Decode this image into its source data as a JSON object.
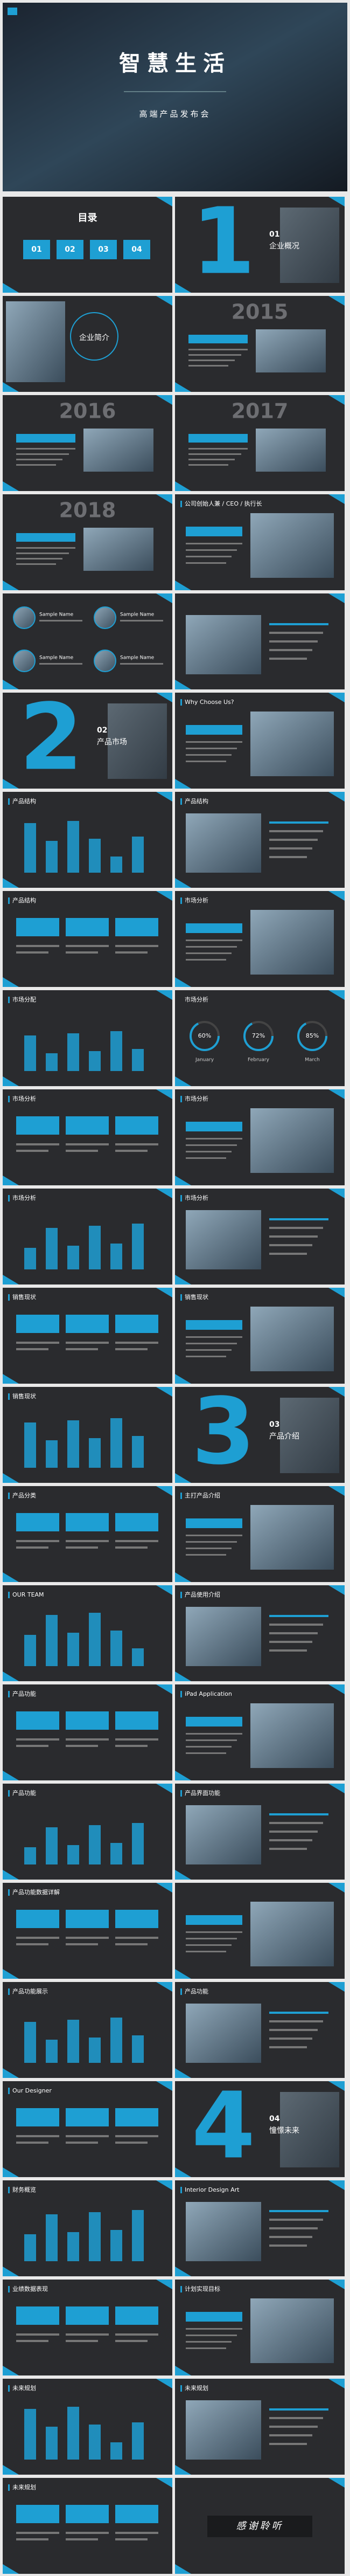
{
  "header": {
    "title": "智慧生活",
    "subtitle": "高端产品发布会"
  },
  "slides": [
    {
      "kind": "toc",
      "title": "目录",
      "items": [
        "01",
        "02",
        "03",
        "04"
      ]
    },
    {
      "kind": "section",
      "number": "1",
      "label": "01",
      "title": "企业概况"
    },
    {
      "kind": "circle",
      "title": "企业简介"
    },
    {
      "kind": "year",
      "year": "2015"
    },
    {
      "kind": "year",
      "year": "2016"
    },
    {
      "kind": "year",
      "year": "2017"
    },
    {
      "kind": "year",
      "year": "2018"
    },
    {
      "kind": "plain",
      "title": "公司创始人兼 / CEO / 执行长"
    },
    {
      "kind": "team",
      "items": [
        "Sample Name",
        "Sample Name",
        "Sample Name",
        "Sample Name"
      ]
    },
    {
      "kind": "plain"
    },
    {
      "kind": "section",
      "number": "2",
      "label": "02",
      "title": "产品市场"
    },
    {
      "kind": "plain",
      "title": "Why Choose Us?"
    },
    {
      "kind": "plain",
      "title": "产品结构"
    },
    {
      "kind": "plain",
      "title": "产品结构"
    },
    {
      "kind": "plain",
      "title": "产品结构"
    },
    {
      "kind": "plain",
      "title": "市场分析"
    },
    {
      "kind": "plain",
      "title": "市场分配"
    },
    {
      "kind": "stats",
      "title": "市场分析",
      "items": [
        "60%",
        "72%",
        "85%"
      ],
      "labels": [
        "January",
        "February",
        "March"
      ]
    },
    {
      "kind": "plain",
      "title": "市场分析"
    },
    {
      "kind": "plain",
      "title": "市场分析"
    },
    {
      "kind": "plain",
      "title": "市场分析"
    },
    {
      "kind": "plain",
      "title": "市场分析"
    },
    {
      "kind": "plain",
      "title": "销售现状"
    },
    {
      "kind": "plain",
      "title": "销售现状"
    },
    {
      "kind": "plain",
      "title": "销售现状"
    },
    {
      "kind": "section",
      "number": "3",
      "label": "03",
      "title": "产品介绍"
    },
    {
      "kind": "plain",
      "title": "产品分类"
    },
    {
      "kind": "plain",
      "title": "主打产品介绍"
    },
    {
      "kind": "plain",
      "title": "OUR TEAM"
    },
    {
      "kind": "plain",
      "title": "产品使用介绍"
    },
    {
      "kind": "plain",
      "title": "产品功能"
    },
    {
      "kind": "plain",
      "title": "iPad Application"
    },
    {
      "kind": "plain",
      "title": "产品功能"
    },
    {
      "kind": "plain",
      "title": "产品界面功能"
    },
    {
      "kind": "plain",
      "title": "产品功能数据详解"
    },
    {
      "kind": "plain"
    },
    {
      "kind": "plain",
      "title": "产品功能展示"
    },
    {
      "kind": "plain",
      "title": "产品功能"
    },
    {
      "kind": "plain",
      "title": "Our Designer"
    },
    {
      "kind": "section",
      "number": "4",
      "label": "04",
      "title": "憧憬未来"
    },
    {
      "kind": "plain",
      "title": "财务概览"
    },
    {
      "kind": "plain",
      "title": "Interior Design Art"
    },
    {
      "kind": "plain",
      "title": "业绩数据表现"
    },
    {
      "kind": "plain",
      "title": "计划实现目标"
    },
    {
      "kind": "plain",
      "title": "未来规划"
    },
    {
      "kind": "plain",
      "title": "未来规划"
    },
    {
      "kind": "plain",
      "title": "未来规划"
    },
    {
      "kind": "end",
      "title": "感谢聆听"
    }
  ]
}
